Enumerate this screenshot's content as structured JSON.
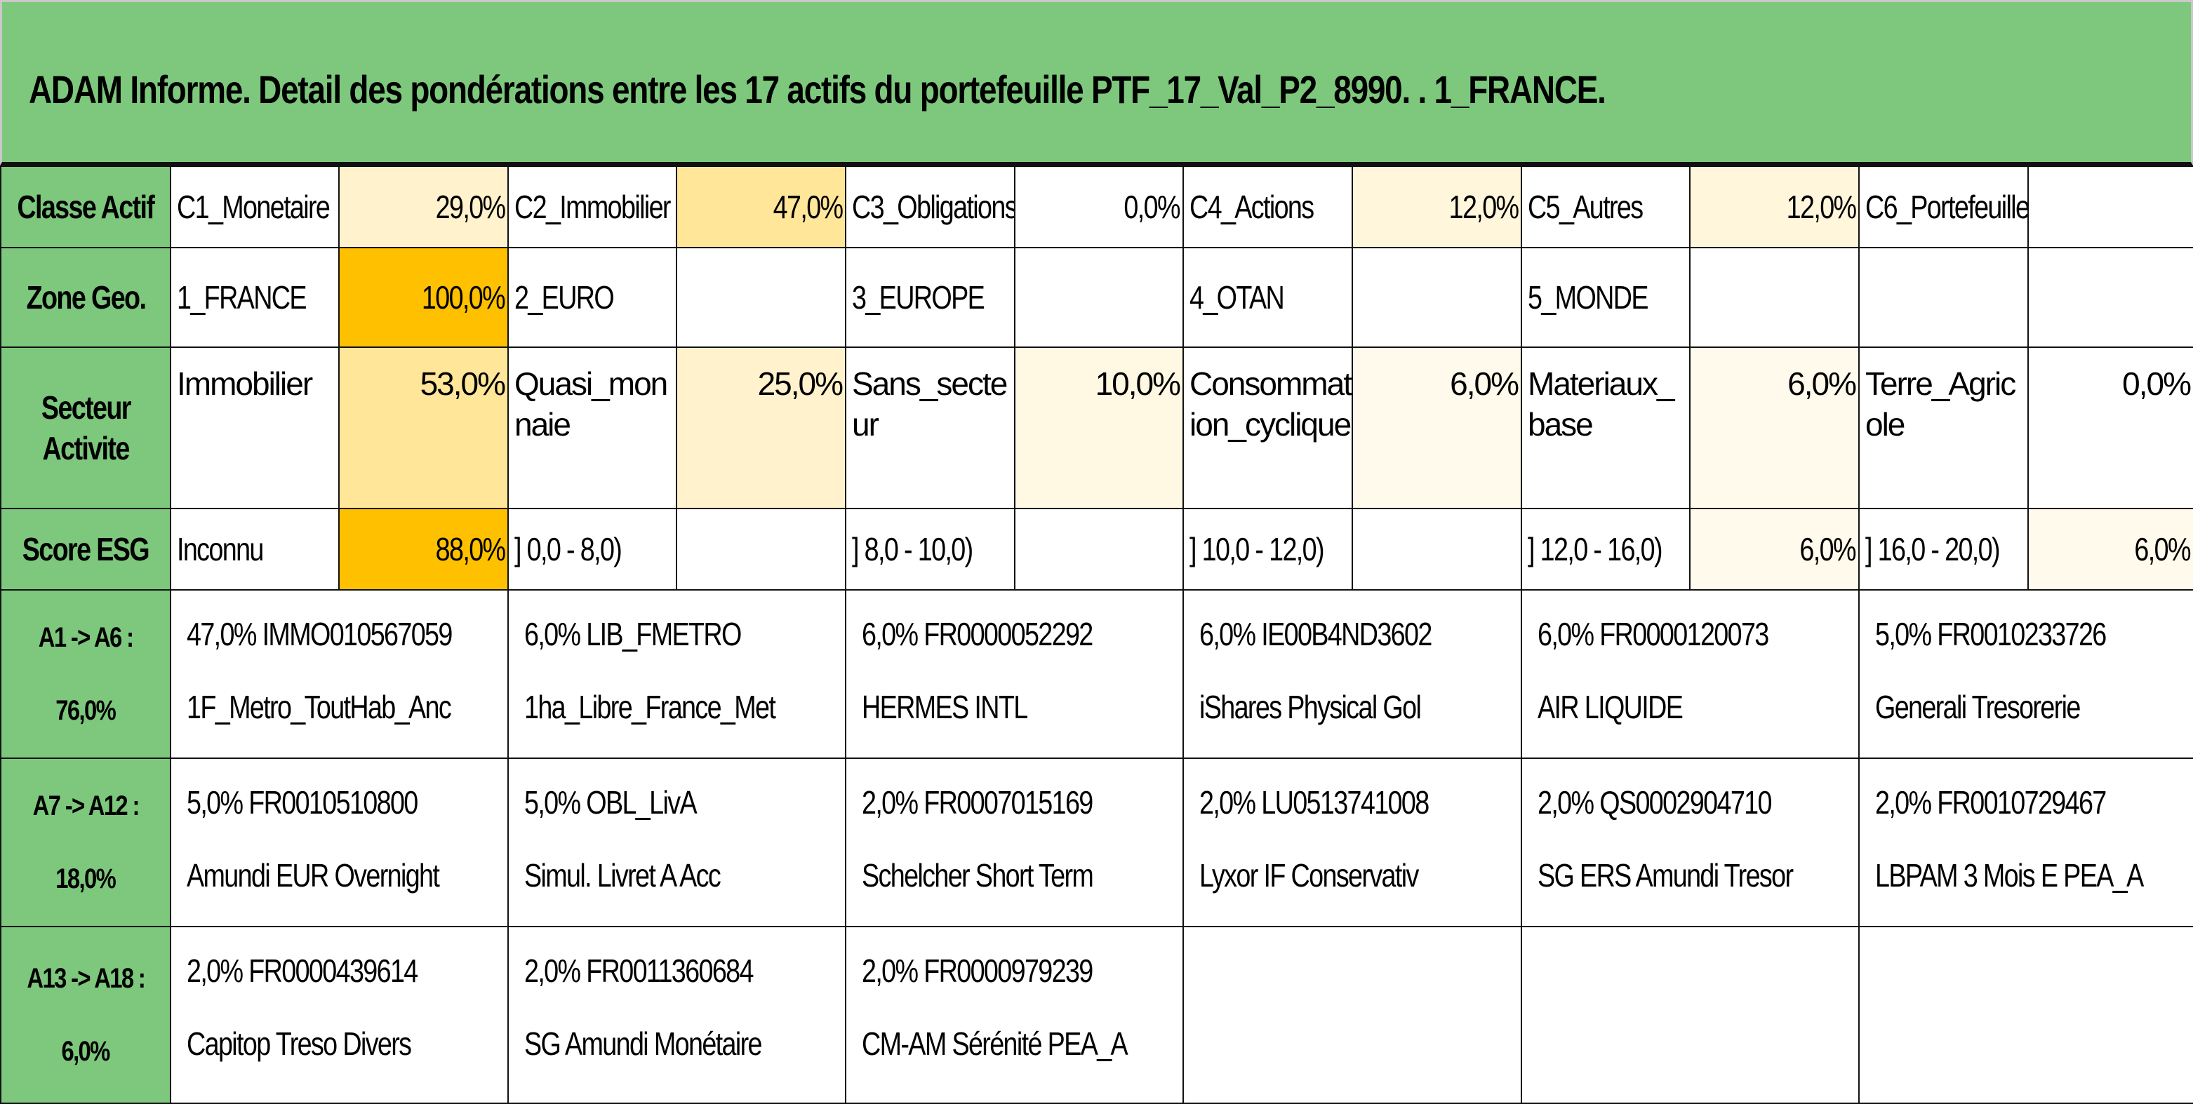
{
  "title": "ADAM Informe. Detail des pondérations entre les 17 actifs du portefeuille PTF_17_Val_P2_8990. . 1_FRANCE.",
  "colors": {
    "header_green": "#7dc87d",
    "high": "#ffc000",
    "mid": "#ffe699",
    "low": "#fff2cc"
  },
  "rows": [
    {
      "header": "Classe Actif",
      "cells": [
        {
          "label": "C1_Monetaire",
          "value": "29,0%",
          "shade": "#fff2cc"
        },
        {
          "label": "C2_Immobilier",
          "value": "47,0%",
          "shade": "#ffe699"
        },
        {
          "label": "C3_Obligations",
          "value": "0,0%",
          "shade": "#ffffff"
        },
        {
          "label": "C4_Actions",
          "value": "12,0%",
          "shade": "#fff6dc"
        },
        {
          "label": "C5_Autres",
          "value": "12,0%",
          "shade": "#fff6dc"
        },
        {
          "label": "C6_Portefeuille",
          "value": "",
          "shade": "#ffffff"
        }
      ]
    },
    {
      "header": "Zone Geo.",
      "cells": [
        {
          "label": "1_FRANCE",
          "value": "100,0%",
          "shade": "#ffc000"
        },
        {
          "label": "2_EURO",
          "value": "",
          "shade": "#ffffff"
        },
        {
          "label": "3_EUROPE",
          "value": "",
          "shade": "#ffffff"
        },
        {
          "label": "4_OTAN",
          "value": "",
          "shade": "#ffffff"
        },
        {
          "label": "5_MONDE",
          "value": "",
          "shade": "#ffffff"
        },
        {
          "label": "",
          "value": "",
          "shade": "#ffffff"
        }
      ]
    },
    {
      "header_line1": "Secteur",
      "header_line2": "Activite",
      "cells": [
        {
          "label": "Immobilier",
          "value": "53,0%",
          "shade": "#ffe699"
        },
        {
          "label": "Quasi_monnaie",
          "value": "25,0%",
          "shade": "#fff2cc"
        },
        {
          "label": "Sans_secteur",
          "value": "10,0%",
          "shade": "#fff8e3"
        },
        {
          "label": "Consommation_cyclique",
          "value": "6,0%",
          "shade": "#fffaeb"
        },
        {
          "label": "Materiaux_base",
          "value": "6,0%",
          "shade": "#fffaeb"
        },
        {
          "label": "Terre_Agricole",
          "value": "0,0%",
          "shade": "#ffffff"
        }
      ]
    },
    {
      "header": "Score ESG",
      "cells": [
        {
          "label": "Inconnu",
          "value": "88,0%",
          "shade": "#ffc000"
        },
        {
          "label": "] 0,0 - 8,0)",
          "value": "",
          "shade": "#ffffff"
        },
        {
          "label": "] 8,0 - 10,0)",
          "value": "",
          "shade": "#ffffff"
        },
        {
          "label": "] 10,0 - 12,0)",
          "value": "",
          "shade": "#ffffff"
        },
        {
          "label": "] 12,0 - 16,0)",
          "value": "6,0%",
          "shade": "#fffaeb"
        },
        {
          "label": "] 16,0 - 20,0)",
          "value": "6,0%",
          "shade": "#fffaeb"
        }
      ]
    }
  ],
  "asset_groups": [
    {
      "label": "A1 -> A6 :",
      "total": "76,0%",
      "assets": [
        {
          "line1": "47,0% IMMO010567059",
          "line2": "1F_Metro_ToutHab_Anc"
        },
        {
          "line1": "6,0% LIB_FMETRO",
          "line2": "1ha_Libre_France_Met"
        },
        {
          "line1": "6,0% FR0000052292",
          "line2": "HERMES INTL"
        },
        {
          "line1": "6,0% IE00B4ND3602",
          "line2": "iShares Physical Gol"
        },
        {
          "line1": "6,0% FR0000120073",
          "line2": "AIR LIQUIDE"
        },
        {
          "line1": "5,0% FR0010233726",
          "line2": "Generali Tresorerie"
        }
      ]
    },
    {
      "label": "A7 -> A12 :",
      "total": "18,0%",
      "assets": [
        {
          "line1": "5,0% FR0010510800",
          "line2": "Amundi EUR Overnight"
        },
        {
          "line1": "5,0% OBL_LivA",
          "line2": "Simul. Livret A Acc"
        },
        {
          "line1": "2,0% FR0007015169",
          "line2": "Schelcher Short Term"
        },
        {
          "line1": "2,0% LU0513741008",
          "line2": "Lyxor IF Conservativ"
        },
        {
          "line1": "2,0% QS0002904710",
          "line2": "SG ERS Amundi Tresor"
        },
        {
          "line1": "2,0% FR0010729467",
          "line2": "LBPAM 3 Mois E PEA_A"
        }
      ]
    },
    {
      "label": "A13 -> A18 :",
      "total": "6,0%",
      "assets": [
        {
          "line1": "2,0% FR0000439614",
          "line2": "Capitop Treso Divers"
        },
        {
          "line1": "2,0% FR0011360684",
          "line2": "SG Amundi Monétaire"
        },
        {
          "line1": "2,0% FR0000979239",
          "line2": "CM-AM Sérénité PEA_A"
        },
        {
          "line1": "",
          "line2": ""
        },
        {
          "line1": "",
          "line2": ""
        },
        {
          "line1": "",
          "line2": ""
        }
      ]
    }
  ]
}
